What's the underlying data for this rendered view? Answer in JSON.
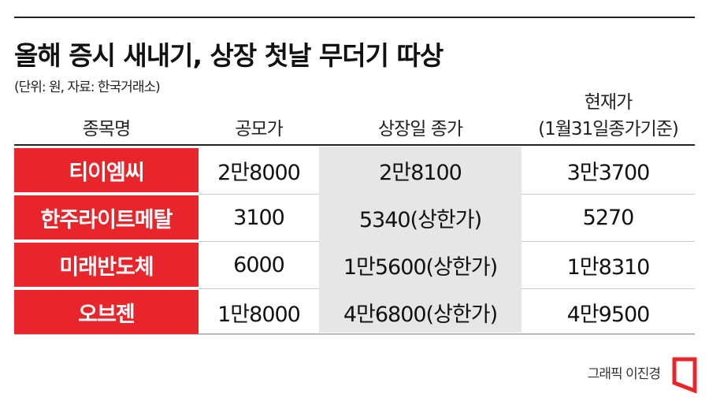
{
  "title": "올해 증시 새내기, 상장 첫날 무더기 따상",
  "subtitle": "(단위: 원, 자료: 한국거래소)",
  "table": {
    "header": [
      "종목명",
      "공모가",
      "상장일 종가",
      [
        "현재가",
        "(1월31일종가기준)"
      ]
    ],
    "rows": [
      [
        "티이엠씨",
        "2만8000",
        "2만8100",
        "3만3700"
      ],
      [
        "한주라이트메탈",
        "3100",
        "5340(상한가)",
        "5270"
      ],
      [
        "미래반도체",
        "6000",
        "1만5600(상한가)",
        "1만8310"
      ],
      [
        "오브젠",
        "1만8000",
        "4만6800(상한가)",
        "4만9500"
      ]
    ]
  },
  "credit": "그래픽 이진경"
}
